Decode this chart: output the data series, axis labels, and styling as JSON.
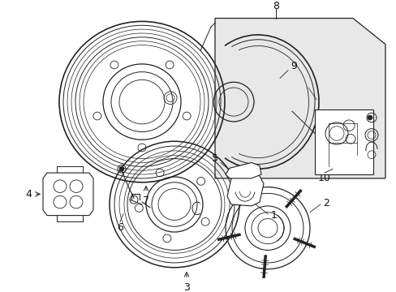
{
  "bg_color": "#ffffff",
  "line_color": "#222222",
  "label_color": "#111111",
  "fig_width": 4.89,
  "fig_height": 3.6,
  "dpi": 100,
  "box8_shade": "#e8e8e8",
  "box10_shade": "#f5f5f5"
}
